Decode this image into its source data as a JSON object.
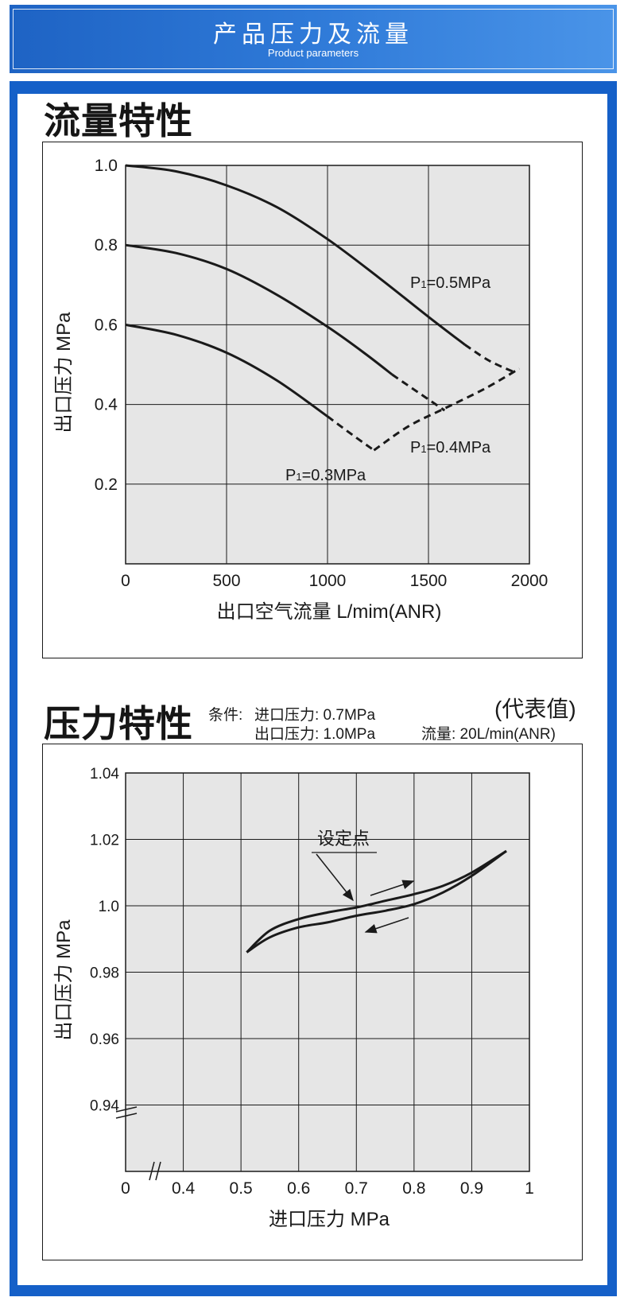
{
  "header": {
    "title": "产品压力及流量",
    "subtitle": "Product parameters"
  },
  "flow_section": {
    "title": "流量特性"
  },
  "pressure_section": {
    "title": "压力特性",
    "conditions_label": "条件:",
    "condition_1": "进口压力: 0.7MPa",
    "condition_2": "出口压力: 1.0MPa",
    "representative": "(代表值)",
    "flow_condition": "流量: 20L/min(ANR)"
  },
  "colors": {
    "banner_start": "#1e63c4",
    "banner_end": "#4a94e8",
    "frame": "#1560c8",
    "plot_bg": "#e6e6e6",
    "line": "#1a1a1a"
  },
  "chart_data": [
    {
      "type": "line",
      "title": "流量特性",
      "xlabel": "出口空气流量 L/mim(ANR)",
      "ylabel": "出口压力 MPa",
      "xlim": [
        0,
        2000
      ],
      "ylim": [
        0,
        1.0
      ],
      "x_ticks": [
        "0",
        "500",
        "1000",
        "1500",
        "2000"
      ],
      "y_ticks": [
        "0.2",
        "0.4",
        "0.6",
        "0.8",
        "1.0"
      ],
      "grid": true,
      "series": [
        {
          "name": "P₁=0.5MPa",
          "label_parts": [
            "P",
            "1",
            "=0.5MPa"
          ],
          "points": [
            [
              0,
              1.0
            ],
            [
              250,
              0.985
            ],
            [
              500,
              0.95
            ],
            [
              750,
              0.895
            ],
            [
              1000,
              0.815
            ],
            [
              1250,
              0.72
            ],
            [
              1500,
              0.62
            ],
            [
              1680,
              0.55
            ]
          ],
          "dashed_points": [
            [
              1680,
              0.55
            ],
            [
              1800,
              0.51
            ],
            [
              1930,
              0.48
            ]
          ]
        },
        {
          "name": "P₁=0.4MPa",
          "label_parts": [
            "P",
            "1",
            "=0.4MPa"
          ],
          "points": [
            [
              0,
              0.8
            ],
            [
              250,
              0.78
            ],
            [
              500,
              0.74
            ],
            [
              750,
              0.675
            ],
            [
              1000,
              0.595
            ],
            [
              1180,
              0.53
            ],
            [
              1320,
              0.475
            ]
          ],
          "dashed_points": [
            [
              1320,
              0.475
            ],
            [
              1450,
              0.43
            ],
            [
              1580,
              0.385
            ]
          ]
        },
        {
          "name": "P₁=0.3MPa",
          "label_parts": [
            "P",
            "1",
            "=0.3MPa"
          ],
          "points": [
            [
              0,
              0.6
            ],
            [
              250,
              0.575
            ],
            [
              500,
              0.53
            ],
            [
              750,
              0.46
            ],
            [
              1000,
              0.37
            ]
          ],
          "dashed_points": [
            [
              1000,
              0.37
            ],
            [
              1120,
              0.325
            ],
            [
              1230,
              0.285
            ]
          ]
        }
      ],
      "dashed_connector": [
        [
          1230,
          0.285
        ],
        [
          1400,
          0.345
        ],
        [
          1580,
          0.39
        ],
        [
          1780,
          0.44
        ],
        [
          1950,
          0.49
        ]
      ]
    },
    {
      "type": "line",
      "title": "压力特性",
      "xlabel": "进口压力 MPa",
      "ylabel": "出口压力 MPa",
      "xlim": [
        0.3,
        1.0
      ],
      "ylim": [
        0.92,
        1.04
      ],
      "x_ticks": [
        "0",
        "0.4",
        "0.5",
        "0.6",
        "0.7",
        "0.8",
        "0.9",
        "1"
      ],
      "y_ticks": [
        "0.94",
        "0.96",
        "0.98",
        "1.0",
        "1.02",
        "1.04"
      ],
      "axis_breaks": true,
      "grid": true,
      "annotation": "设定点",
      "series": [
        {
          "name": "increasing",
          "points": [
            [
              0.51,
              0.986
            ],
            [
              0.55,
              0.9925
            ],
            [
              0.6,
              0.996
            ],
            [
              0.65,
              0.998
            ],
            [
              0.7,
              0.9995
            ],
            [
              0.75,
              1.0015
            ],
            [
              0.8,
              1.0035
            ],
            [
              0.85,
              1.006
            ],
            [
              0.9,
              1.01
            ],
            [
              0.96,
              1.0165
            ]
          ]
        },
        {
          "name": "decreasing",
          "points": [
            [
              0.51,
              0.986
            ],
            [
              0.55,
              0.9905
            ],
            [
              0.6,
              0.9935
            ],
            [
              0.65,
              0.995
            ],
            [
              0.7,
              0.997
            ],
            [
              0.75,
              0.9985
            ],
            [
              0.8,
              1.0005
            ],
            [
              0.85,
              1.004
            ],
            [
              0.9,
              1.009
            ],
            [
              0.96,
              1.0165
            ]
          ]
        }
      ]
    }
  ]
}
